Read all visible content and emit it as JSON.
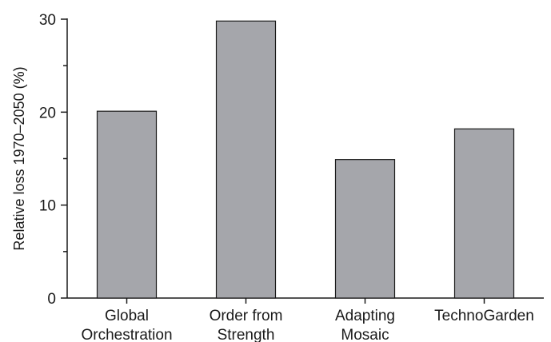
{
  "chart_data": {
    "type": "bar",
    "categories": [
      [
        "Global",
        "Orchestration"
      ],
      [
        "Order from",
        "Strength"
      ],
      [
        "Adapting",
        "Mosaic"
      ],
      [
        "TechnoGarden"
      ]
    ],
    "values": [
      20.1,
      29.8,
      14.9,
      18.2
    ],
    "ylabel": "Relative loss 1970–2050 (%)",
    "xlabel": "",
    "ylim": [
      0,
      30
    ],
    "yticks": [
      "0",
      "10",
      "20",
      "30"
    ],
    "grid": false,
    "bar_color": "#a5a6ab",
    "edge_color": "#1a1a1a"
  }
}
